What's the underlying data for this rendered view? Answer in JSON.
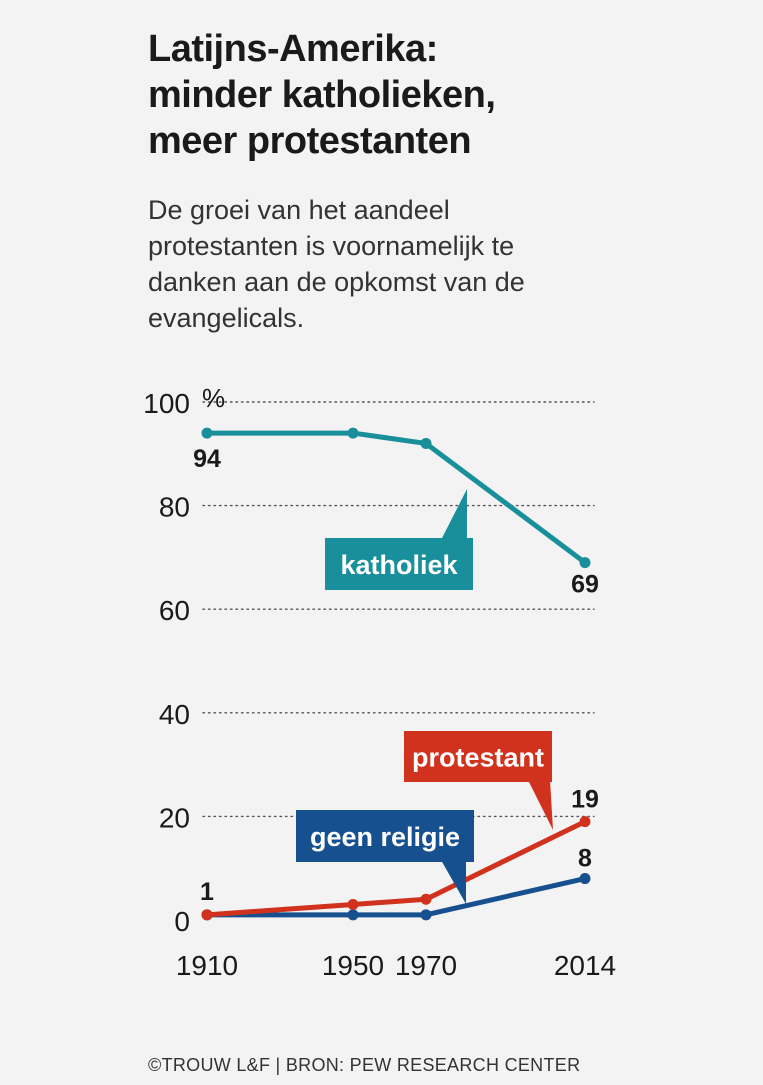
{
  "title_lines": [
    "Latijns-Amerika:",
    "minder katholieken,",
    "meer protestanten"
  ],
  "subtitle_lines": [
    "De groei van het aandeel",
    "protestanten is voornamelijk te",
    "danken aan de opkomst van de",
    "evangelicals."
  ],
  "footer": "©TROUW L&F | BRON: PEW RESEARCH CENTER",
  "chart_data": {
    "type": "line",
    "title": "",
    "xlabel": "",
    "ylabel": "",
    "y_unit": "%",
    "ylim": [
      0,
      100
    ],
    "yticks": [
      0,
      20,
      40,
      60,
      80,
      100
    ],
    "x_ticks": [
      1910,
      1950,
      1970,
      2014
    ],
    "grid": "dotted horizontal",
    "series": [
      {
        "name": "katholiek",
        "color": "#1a8f9c",
        "x": [
          1910,
          1950,
          1970,
          2014
        ],
        "values": [
          94,
          94,
          92,
          69
        ],
        "point_labels": [
          "94",
          null,
          null,
          "69"
        ]
      },
      {
        "name": "protestant",
        "color": "#d0321d",
        "x": [
          1910,
          1950,
          1970,
          2014
        ],
        "values": [
          1,
          3,
          4,
          19
        ],
        "point_labels": [
          "1",
          null,
          null,
          "19"
        ]
      },
      {
        "name": "geen religie",
        "color": "#16508f",
        "x": [
          1910,
          1950,
          1970,
          2014
        ],
        "values": [
          1,
          1,
          1,
          8
        ],
        "point_labels": [
          null,
          null,
          null,
          "8"
        ]
      }
    ]
  }
}
